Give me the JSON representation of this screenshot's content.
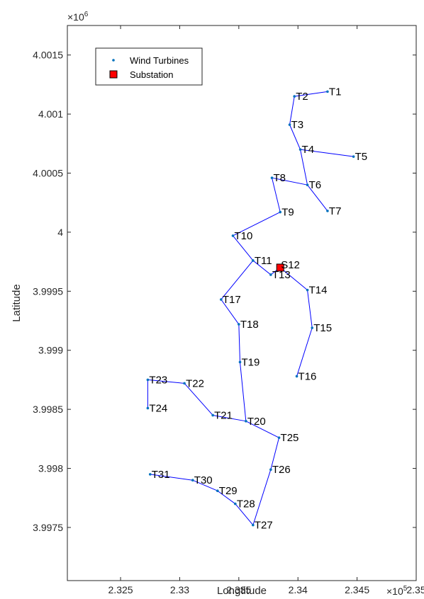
{
  "chart_data": {
    "type": "scatter",
    "xlabel": "Longtitude",
    "ylabel": "Latitude",
    "x_exponent_label": "×10",
    "x_exponent_power": "5",
    "y_exponent_label": "×10",
    "y_exponent_power": "6",
    "xlim": [
      232050,
      235000
    ],
    "ylim": [
      3997050,
      4001750
    ],
    "x_ticks": [
      232500,
      233000,
      233500,
      234000,
      234500,
      235000
    ],
    "x_tick_labels": [
      "2.325",
      "2.33",
      "2.335",
      "2.34",
      "2.345",
      "2.35"
    ],
    "y_ticks": [
      3997500,
      3998000,
      3998500,
      3999000,
      3999500,
      4000000,
      4000500,
      4001000,
      4001500
    ],
    "y_tick_labels": [
      "3.9975",
      "3.998",
      "3.9985",
      "3.999",
      "3.9995",
      "4",
      "4.0005",
      "4.001",
      "4.0015"
    ],
    "grid": false,
    "legend_position": "top-left",
    "legend": [
      {
        "label": "Wind Turbines",
        "marker": "dot",
        "color": "#0072BD"
      },
      {
        "label": "Substation",
        "marker": "square",
        "color": "#FF0000"
      }
    ],
    "colors": {
      "line": "#0000FF",
      "turbine": "#0072BD",
      "substation": "#FF0000"
    },
    "turbines": [
      {
        "name": "T1",
        "x": 234250,
        "y": 4001190
      },
      {
        "name": "T2",
        "x": 233970,
        "y": 4001150
      },
      {
        "name": "T3",
        "x": 233930,
        "y": 4000910
      },
      {
        "name": "T4",
        "x": 234020,
        "y": 4000700
      },
      {
        "name": "T5",
        "x": 234470,
        "y": 4000640
      },
      {
        "name": "T6",
        "x": 234080,
        "y": 4000400
      },
      {
        "name": "T7",
        "x": 234250,
        "y": 4000180
      },
      {
        "name": "T8",
        "x": 233780,
        "y": 4000460
      },
      {
        "name": "T9",
        "x": 233850,
        "y": 4000170
      },
      {
        "name": "T10",
        "x": 233450,
        "y": 3999970
      },
      {
        "name": "T11",
        "x": 233620,
        "y": 3999760
      },
      {
        "name": "T13",
        "x": 233770,
        "y": 3999640
      },
      {
        "name": "T14",
        "x": 234080,
        "y": 3999510
      },
      {
        "name": "T15",
        "x": 234120,
        "y": 3999190
      },
      {
        "name": "T16",
        "x": 233990,
        "y": 3998780
      },
      {
        "name": "T17",
        "x": 233350,
        "y": 3999430
      },
      {
        "name": "T18",
        "x": 233500,
        "y": 3999220
      },
      {
        "name": "T19",
        "x": 233510,
        "y": 3998900
      },
      {
        "name": "T20",
        "x": 233560,
        "y": 3998400
      },
      {
        "name": "T21",
        "x": 233280,
        "y": 3998450
      },
      {
        "name": "T22",
        "x": 233040,
        "y": 3998720
      },
      {
        "name": "T23",
        "x": 232730,
        "y": 3998750
      },
      {
        "name": "T24",
        "x": 232730,
        "y": 3998510
      },
      {
        "name": "T25",
        "x": 233840,
        "y": 3998260
      },
      {
        "name": "T26",
        "x": 233770,
        "y": 3997990
      },
      {
        "name": "T27",
        "x": 233620,
        "y": 3997520
      },
      {
        "name": "T28",
        "x": 233470,
        "y": 3997700
      },
      {
        "name": "T29",
        "x": 233320,
        "y": 3997810
      },
      {
        "name": "T30",
        "x": 233110,
        "y": 3997900
      },
      {
        "name": "T31",
        "x": 232750,
        "y": 3997950
      }
    ],
    "substation": {
      "name": "S12",
      "x": 233850,
      "y": 3999700
    },
    "links": [
      [
        "T1",
        "T2"
      ],
      [
        "T2",
        "T3"
      ],
      [
        "T3",
        "T4"
      ],
      [
        "T4",
        "T5"
      ],
      [
        "T4",
        "T6"
      ],
      [
        "T6",
        "T7"
      ],
      [
        "T6",
        "T8"
      ],
      [
        "T8",
        "T9"
      ],
      [
        "T9",
        "T10"
      ],
      [
        "T10",
        "T11"
      ],
      [
        "T11",
        "T13"
      ],
      [
        "T13",
        "S12"
      ],
      [
        "T11",
        "T17"
      ],
      [
        "T17",
        "T18"
      ],
      [
        "T18",
        "T19"
      ],
      [
        "T19",
        "T20"
      ],
      [
        "T20",
        "T21"
      ],
      [
        "T21",
        "T22"
      ],
      [
        "T22",
        "T23"
      ],
      [
        "T23",
        "T24"
      ],
      [
        "S12",
        "T14"
      ],
      [
        "T14",
        "T15"
      ],
      [
        "T15",
        "T16"
      ],
      [
        "T20",
        "T25"
      ],
      [
        "T25",
        "T26"
      ],
      [
        "T26",
        "T27"
      ],
      [
        "T27",
        "T28"
      ],
      [
        "T28",
        "T29"
      ],
      [
        "T29",
        "T30"
      ],
      [
        "T30",
        "T31"
      ]
    ]
  }
}
